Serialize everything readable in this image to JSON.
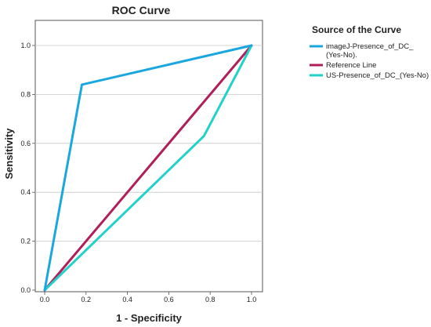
{
  "chart_data": {
    "type": "line",
    "title": "ROC Curve",
    "xlabel": "1 - Specificity",
    "ylabel": "Sensitivity",
    "xlim": [
      0,
      1
    ],
    "ylim": [
      0,
      1.1
    ],
    "x_ticks": [
      "0.0",
      "0.2",
      "0.4",
      "0.6",
      "0.8",
      "1.0"
    ],
    "y_ticks": [
      "0.0",
      "0.2",
      "0.4",
      "0.6",
      "0.8",
      "1.0"
    ],
    "grid": "horizontal",
    "legend": {
      "title": "Source of the Curve",
      "placement": "top-right"
    },
    "series": [
      {
        "name": "imageJ-Presence_of_DC_ (Yes-No).",
        "legend_lines": [
          "imageJ-Presence_of_DC_",
          "(Yes-No)."
        ],
        "color": "#1aa7e0",
        "points": [
          [
            0,
            0
          ],
          [
            0.18,
            0.84
          ],
          [
            1,
            1
          ]
        ]
      },
      {
        "name": "Reference Line",
        "legend_lines": [
          "Reference Line"
        ],
        "color": "#b01f5a",
        "points": [
          [
            0,
            0
          ],
          [
            1,
            1
          ]
        ]
      },
      {
        "name": "US-Presence_of_DC_(Yes-No)",
        "legend_lines": [
          "US-Presence_of_DC_(Yes-No)"
        ],
        "color": "#22d1c9",
        "points": [
          [
            0,
            0
          ],
          [
            0.77,
            0.63
          ],
          [
            1,
            1
          ]
        ]
      }
    ]
  }
}
